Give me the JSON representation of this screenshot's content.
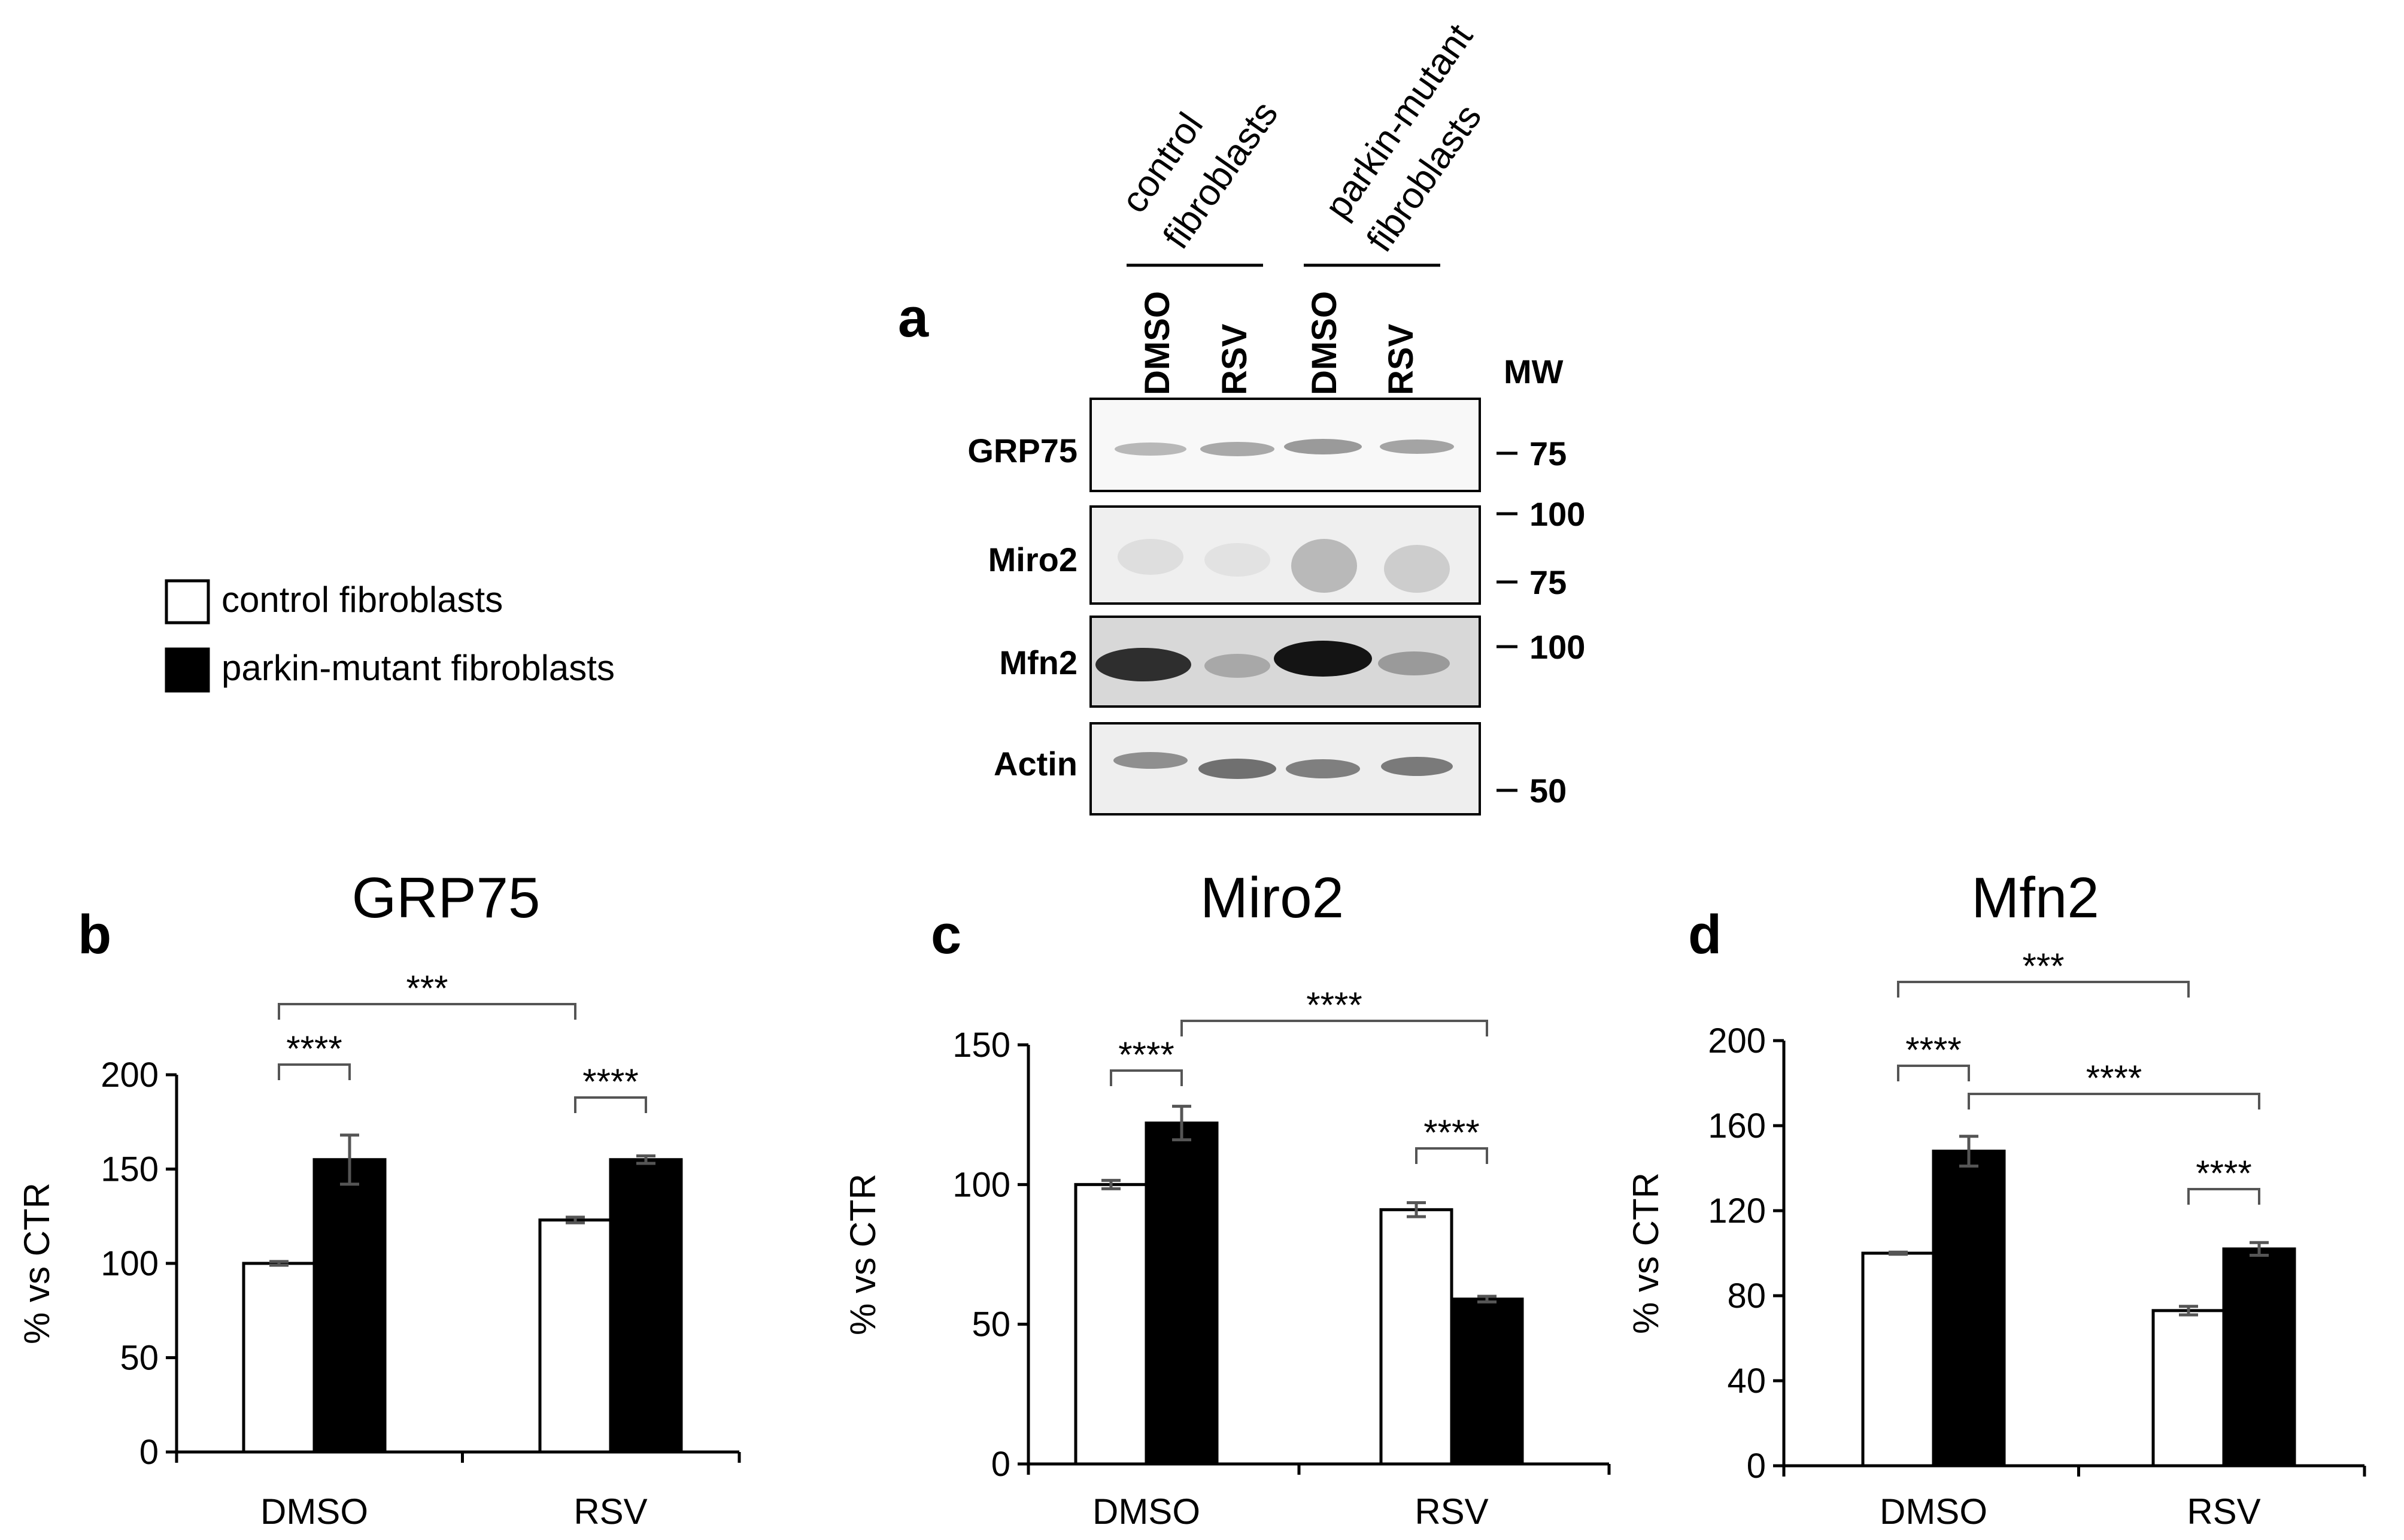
{
  "panel_a": {
    "letter": "a",
    "group_labels": [
      {
        "lines": [
          "control",
          "fibroblasts"
        ]
      },
      {
        "lines": [
          "parkin-mutant",
          "fibroblasts"
        ]
      }
    ],
    "lane_labels": [
      "DMSO",
      "RSV",
      "DMSO",
      "RSV"
    ],
    "mw_title": "MW",
    "blots": [
      {
        "label": "GRP75",
        "markers": [
          "75"
        ]
      },
      {
        "label": "Miro2",
        "markers": [
          "100",
          "75"
        ]
      },
      {
        "label": "Mfn2",
        "markers": [
          "100"
        ]
      },
      {
        "label": "Actin",
        "markers": [
          "50"
        ]
      }
    ]
  },
  "legend": [
    {
      "label": "control fibroblasts",
      "color": "#ffffff"
    },
    {
      "label": "parkin-mutant fibroblasts",
      "color": "#000000"
    }
  ],
  "chart_data": [
    {
      "type": "bar",
      "panel": "b",
      "title": "GRP75",
      "ylabel": "% vs CTR",
      "xlabel": "",
      "categories": [
        "DMSO",
        "RSV"
      ],
      "ylim": [
        0,
        200
      ],
      "yticks": [
        "0",
        "50",
        "100",
        "150",
        "200"
      ],
      "series": [
        {
          "name": "control fibroblasts",
          "values": [
            100,
            123
          ],
          "errors": [
            1,
            1.5
          ],
          "color": "#ffffff"
        },
        {
          "name": "parkin-mutant fibroblasts",
          "values": [
            155,
            155
          ],
          "errors": [
            13,
            2
          ],
          "color": "#000000"
        }
      ],
      "annotations": [
        {
          "text": "****",
          "from": [
            0,
            0
          ],
          "to": [
            0,
            1
          ]
        },
        {
          "text": "****",
          "from": [
            1,
            0
          ],
          "to": [
            1,
            1
          ]
        },
        {
          "text": "***",
          "from": [
            0,
            0
          ],
          "to": [
            1,
            0
          ]
        }
      ]
    },
    {
      "type": "bar",
      "panel": "c",
      "title": "Miro2",
      "ylabel": "% vs CTR",
      "xlabel": "",
      "categories": [
        "DMSO",
        "RSV"
      ],
      "ylim": [
        0,
        150
      ],
      "yticks": [
        "0",
        "50",
        "100",
        "150"
      ],
      "series": [
        {
          "name": "control fibroblasts",
          "values": [
            100,
            91
          ],
          "errors": [
            1.5,
            2.5
          ],
          "color": "#ffffff"
        },
        {
          "name": "parkin-mutant fibroblasts",
          "values": [
            122,
            59
          ],
          "errors": [
            6,
            1
          ],
          "color": "#000000"
        }
      ],
      "annotations": [
        {
          "text": "****",
          "from": [
            0,
            0
          ],
          "to": [
            0,
            1
          ]
        },
        {
          "text": "****",
          "from": [
            1,
            0
          ],
          "to": [
            1,
            1
          ]
        },
        {
          "text": "****",
          "from": [
            0,
            1
          ],
          "to": [
            1,
            1
          ]
        }
      ]
    },
    {
      "type": "bar",
      "panel": "d",
      "title": "Mfn2",
      "ylabel": "% vs CTR",
      "xlabel": "",
      "categories": [
        "DMSO",
        "RSV"
      ],
      "ylim": [
        0,
        200
      ],
      "yticks": [
        "0",
        "40",
        "80",
        "120",
        "160",
        "200"
      ],
      "series": [
        {
          "name": "control fibroblasts",
          "values": [
            100,
            73
          ],
          "errors": [
            0.5,
            2
          ],
          "color": "#ffffff"
        },
        {
          "name": "parkin-mutant fibroblasts",
          "values": [
            148,
            102
          ],
          "errors": [
            7,
            3
          ],
          "color": "#000000"
        }
      ],
      "annotations": [
        {
          "text": "****",
          "from": [
            0,
            0
          ],
          "to": [
            0,
            1
          ]
        },
        {
          "text": "****",
          "from": [
            1,
            0
          ],
          "to": [
            1,
            1
          ]
        },
        {
          "text": "***",
          "from": [
            0,
            0
          ],
          "to": [
            1,
            0
          ]
        },
        {
          "text": "****",
          "from": [
            0,
            1
          ],
          "to": [
            1,
            1
          ]
        }
      ]
    }
  ]
}
